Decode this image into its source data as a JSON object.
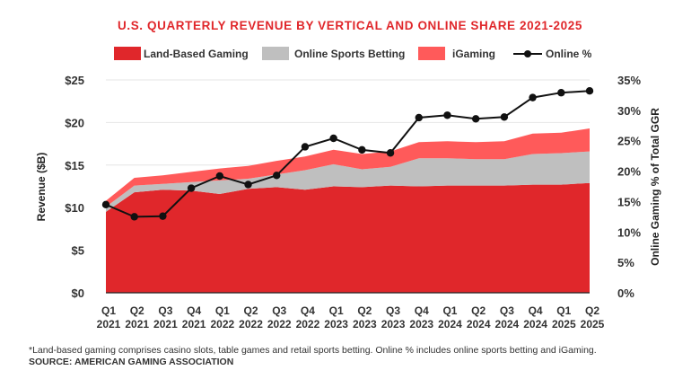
{
  "chart_data": {
    "type": "area",
    "title": "U.S. QUARTERLY REVENUE BY VERTICAL AND ONLINE SHARE 2021-2025",
    "ylabel": "Revenue ($B)",
    "y2label": "Online Gaming % of Total GGR",
    "ylim": [
      0,
      25
    ],
    "y2lim": [
      0,
      35
    ],
    "yticks": [
      "$0",
      "$5",
      "$10",
      "$15",
      "$20",
      "$25"
    ],
    "y2ticks": [
      "0%",
      "5%",
      "10%",
      "15%",
      "20%",
      "25%",
      "30%",
      "35%"
    ],
    "categories": [
      [
        "Q1",
        "2021"
      ],
      [
        "Q2",
        "2021"
      ],
      [
        "Q3",
        "2021"
      ],
      [
        "Q4",
        "2021"
      ],
      [
        "Q1",
        "2022"
      ],
      [
        "Q2",
        "2022"
      ],
      [
        "Q3",
        "2022"
      ],
      [
        "Q4",
        "2022"
      ],
      [
        "Q1",
        "2023"
      ],
      [
        "Q2",
        "2023"
      ],
      [
        "Q3",
        "2023"
      ],
      [
        "Q4",
        "2023"
      ],
      [
        "Q1",
        "2024"
      ],
      [
        "Q2",
        "2024"
      ],
      [
        "Q3",
        "2024"
      ],
      [
        "Q4",
        "2024"
      ],
      [
        "Q1",
        "2025"
      ],
      [
        "Q2",
        "2025"
      ]
    ],
    "series": [
      {
        "name": "Land-Based Gaming",
        "color": "#e0272b",
        "values": [
          9.5,
          11.8,
          12.1,
          12.0,
          11.6,
          12.2,
          12.4,
          12.1,
          12.5,
          12.4,
          12.6,
          12.5,
          12.6,
          12.6,
          12.6,
          12.7,
          12.7,
          12.9
        ]
      },
      {
        "name": "Online Sports Betting",
        "color": "#bfbfbf",
        "values": [
          0.6,
          0.8,
          0.7,
          1.0,
          1.6,
          1.2,
          1.5,
          2.3,
          2.6,
          2.1,
          2.2,
          3.3,
          3.2,
          3.1,
          3.1,
          3.6,
          3.7,
          3.7
        ]
      },
      {
        "name": "iGaming",
        "color": "#ff5a5a",
        "values": [
          0.7,
          0.9,
          1.0,
          1.2,
          1.4,
          1.5,
          1.6,
          1.6,
          1.7,
          1.8,
          1.8,
          1.9,
          2.0,
          2.0,
          2.1,
          2.4,
          2.4,
          2.7
        ]
      },
      {
        "name": "Online %",
        "color": "#111111",
        "axis": "right",
        "values": [
          14.5,
          12.5,
          12.6,
          17.2,
          19.2,
          17.8,
          19.3,
          24.0,
          25.4,
          23.5,
          23.0,
          28.8,
          29.2,
          28.6,
          28.9,
          32.1,
          32.9,
          33.2
        ]
      }
    ],
    "legend": "top-center"
  },
  "footnote": "*Land-based gaming comprises casino slots, table games and retail sports betting. Online % includes online sports betting and iGaming.",
  "source": "SOURCE: AMERICAN GAMING ASSOCIATION"
}
